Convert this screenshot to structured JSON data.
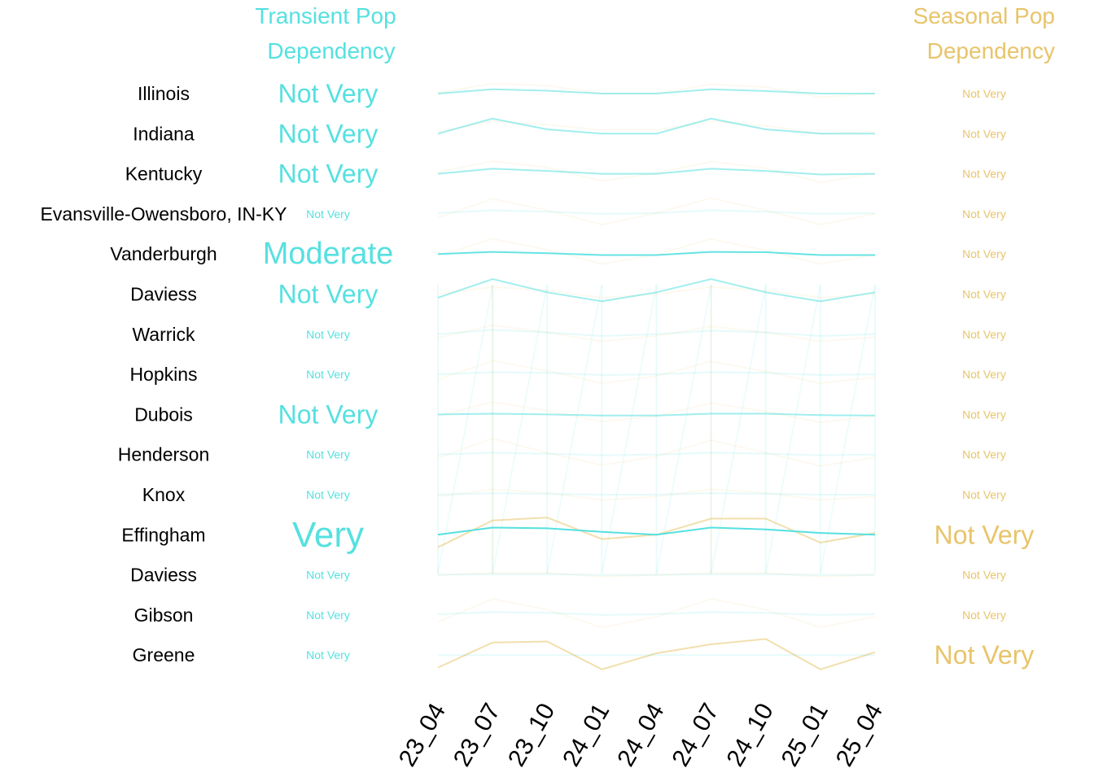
{
  "colors": {
    "transient": "#56E0E0",
    "seasonal": "#E8C46A"
  },
  "chart_data": {
    "type": "line",
    "headers": {
      "transient": [
        "Transient Pop",
        "Dependency"
      ],
      "seasonal": [
        "Seasonal Pop",
        "Dependency"
      ]
    },
    "x": [
      "23_04",
      "23_07",
      "23_10",
      "24_01",
      "24_04",
      "24_07",
      "24_10",
      "25_01",
      "25_04"
    ],
    "rows": [
      {
        "name": "Illinois",
        "transient_label": "Not Very",
        "transient_level": 2,
        "seasonal_label": "Not Very",
        "seasonal_level": 1,
        "transient": [
          0.5,
          0.62,
          0.58,
          0.5,
          0.5,
          0.62,
          0.57,
          0.5,
          0.5
        ],
        "seasonal": [
          0.52,
          0.78,
          0.72,
          0.5,
          0.5,
          0.76,
          0.68,
          0.4,
          0.5
        ]
      },
      {
        "name": "Indiana",
        "transient_label": "Not Very",
        "transient_level": 2,
        "seasonal_label": "Not Very",
        "seasonal_level": 1,
        "transient": [
          0.5,
          0.92,
          0.62,
          0.5,
          0.5,
          0.92,
          0.62,
          0.5,
          0.5
        ],
        "seasonal": [
          0.55,
          0.85,
          0.75,
          0.6,
          0.6,
          0.85,
          0.72,
          0.5,
          0.55
        ]
      },
      {
        "name": "Kentucky",
        "transient_label": "Not Very",
        "transient_level": 2,
        "seasonal_label": "Not Very",
        "seasonal_level": 1,
        "transient": [
          0.5,
          0.64,
          0.58,
          0.5,
          0.5,
          0.64,
          0.58,
          0.48,
          0.5
        ],
        "seasonal": [
          0.55,
          0.85,
          0.68,
          0.3,
          0.52,
          0.84,
          0.66,
          0.26,
          0.52
        ]
      },
      {
        "name": "Evansville-Owensboro, IN-KY",
        "transient_label": "Not Very",
        "transient_level": 1,
        "seasonal_label": "Not Very",
        "seasonal_level": 1,
        "transient": [
          0.52,
          0.6,
          0.56,
          0.5,
          0.52,
          0.6,
          0.56,
          0.5,
          0.52
        ],
        "seasonal": [
          0.4,
          0.92,
          0.6,
          0.2,
          0.52,
          0.94,
          0.6,
          0.2,
          0.5
        ]
      },
      {
        "name": "Vanderburgh",
        "transient_label": "Moderate",
        "transient_level": 3,
        "seasonal_label": "Not Very",
        "seasonal_level": 1,
        "transient": [
          0.5,
          0.56,
          0.52,
          0.47,
          0.47,
          0.56,
          0.55,
          0.47,
          0.47
        ],
        "seasonal": [
          0.45,
          0.92,
          0.62,
          0.22,
          0.48,
          0.92,
          0.6,
          0.22,
          0.47
        ]
      },
      {
        "name": "Daviess",
        "transient_label": "Not Very",
        "transient_level": 2,
        "seasonal_label": "Not Very",
        "seasonal_level": 1,
        "transient": [
          0.4,
          0.92,
          0.55,
          0.3,
          0.55,
          0.92,
          0.55,
          0.3,
          0.55
        ],
        "seasonal": [
          0.5,
          0.7,
          0.6,
          0.4,
          0.5,
          0.7,
          0.6,
          0.4,
          0.5
        ]
      },
      {
        "name": "Warrick",
        "transient_label": "Not Very",
        "transient_level": 1,
        "seasonal_label": "Not Very",
        "seasonal_level": 1,
        "transient": [
          0.5,
          0.62,
          0.55,
          0.45,
          0.5,
          0.6,
          0.55,
          0.45,
          0.5
        ],
        "seasonal": [
          0.4,
          0.75,
          0.55,
          0.3,
          0.45,
          0.72,
          0.55,
          0.3,
          0.42
        ]
      },
      {
        "name": "Hopkins",
        "transient_label": "Not Very",
        "transient_level": 1,
        "seasonal_label": "Not Very",
        "seasonal_level": 1,
        "transient": [
          0.5,
          0.56,
          0.54,
          0.48,
          0.5,
          0.56,
          0.54,
          0.48,
          0.5
        ],
        "seasonal": [
          0.35,
          0.88,
          0.6,
          0.25,
          0.45,
          0.86,
          0.58,
          0.25,
          0.42
        ]
      },
      {
        "name": "Dubois",
        "transient_label": "Not Very",
        "transient_level": 2,
        "seasonal_label": "Not Very",
        "seasonal_level": 1,
        "transient": [
          0.5,
          0.52,
          0.5,
          0.47,
          0.47,
          0.52,
          0.52,
          0.48,
          0.47
        ],
        "seasonal": [
          0.45,
          0.85,
          0.6,
          0.3,
          0.45,
          0.82,
          0.58,
          0.28,
          0.45
        ]
      },
      {
        "name": "Henderson",
        "transient_label": "Not Very",
        "transient_level": 1,
        "seasonal_label": "Not Very",
        "seasonal_level": 1,
        "transient": [
          0.5,
          0.55,
          0.52,
          0.48,
          0.5,
          0.55,
          0.52,
          0.48,
          0.5
        ],
        "seasonal": [
          0.4,
          0.95,
          0.55,
          0.2,
          0.45,
          0.9,
          0.55,
          0.18,
          0.42
        ]
      },
      {
        "name": "Knox",
        "transient_label": "Not Very",
        "transient_level": 1,
        "seasonal_label": "Not Very",
        "seasonal_level": 1,
        "transient": [
          0.5,
          0.54,
          0.52,
          0.5,
          0.5,
          0.54,
          0.52,
          0.5,
          0.5
        ],
        "seasonal": [
          0.45,
          0.65,
          0.55,
          0.35,
          0.45,
          0.65,
          0.55,
          0.35,
          0.45
        ]
      },
      {
        "name": "Effingham",
        "transient_label": "Very",
        "transient_level": 4,
        "seasonal_label": "Not Very",
        "seasonal_level": 2,
        "transient": [
          0.5,
          0.7,
          0.68,
          0.58,
          0.5,
          0.7,
          0.65,
          0.55,
          0.5
        ],
        "seasonal": [
          0.15,
          0.9,
          0.98,
          0.38,
          0.5,
          0.95,
          0.95,
          0.28,
          0.55
        ]
      },
      {
        "name": "Daviess",
        "transient_label": "Not Very",
        "transient_level": 1,
        "seasonal_label": "Not Very",
        "seasonal_level": 1,
        "transient": [
          0.5,
          0.52,
          0.52,
          0.5,
          0.5,
          0.52,
          0.52,
          0.5,
          0.5
        ],
        "seasonal": [
          0.5,
          0.55,
          0.55,
          0.45,
          0.5,
          0.55,
          0.55,
          0.45,
          0.5
        ]
      },
      {
        "name": "Gibson",
        "transient_label": "Not Very",
        "transient_level": 1,
        "seasonal_label": "Not Very",
        "seasonal_level": 1,
        "transient": [
          0.52,
          0.58,
          0.56,
          0.5,
          0.52,
          0.58,
          0.56,
          0.5,
          0.52
        ],
        "seasonal": [
          0.3,
          0.95,
          0.65,
          0.15,
          0.45,
          0.95,
          0.65,
          0.15,
          0.45
        ]
      },
      {
        "name": "Greene",
        "transient_label": "Not Very",
        "transient_level": 1,
        "seasonal_label": "Not Very",
        "seasonal_level": 2,
        "transient": [
          0.5,
          0.5,
          0.5,
          0.5,
          0.5,
          0.5,
          0.5,
          0.5,
          0.5
        ],
        "seasonal": [
          0.15,
          0.85,
          0.88,
          0.1,
          0.55,
          0.8,
          0.95,
          0.1,
          0.58
        ]
      }
    ],
    "artifacts": [
      {
        "color": "transient",
        "opacity": 0.12,
        "x_index": [
          0,
          1,
          2,
          3,
          4,
          5,
          6,
          7,
          8
        ],
        "top": [
          0,
          0,
          0,
          0,
          0,
          0,
          0,
          0,
          0
        ],
        "bottom": [
          1,
          1,
          1,
          1,
          1,
          1,
          1,
          1,
          1
        ]
      },
      {
        "color": "seasonal",
        "opacity": 0.12,
        "x_index": [
          1,
          5
        ],
        "top": [
          0,
          0
        ],
        "bottom": [
          1,
          1
        ]
      }
    ]
  }
}
